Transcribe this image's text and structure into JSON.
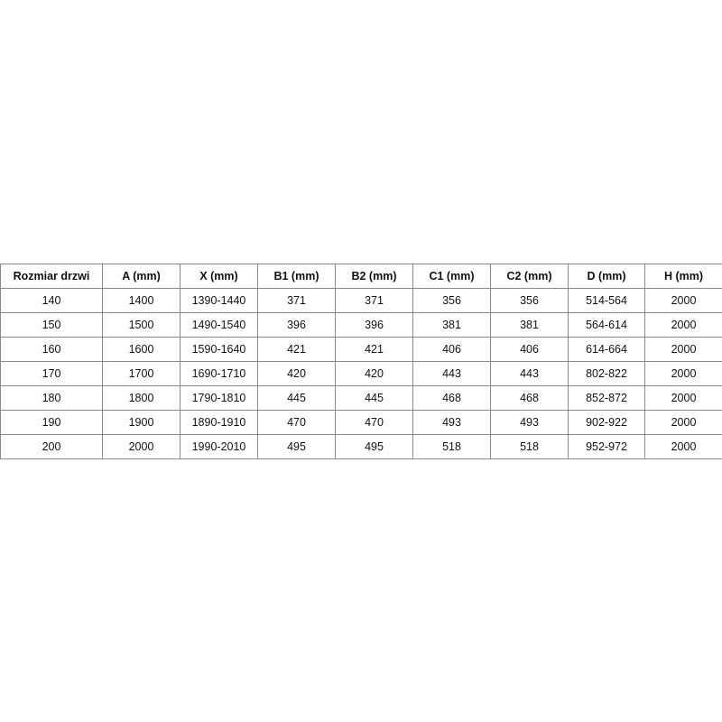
{
  "table": {
    "headers": [
      "Rozmiar drzwi",
      "A (mm)",
      "X (mm)",
      "B1 (mm)",
      "B2 (mm)",
      "C1 (mm)",
      "C2 (mm)",
      "D (mm)",
      "H (mm)"
    ],
    "rows": [
      [
        "140",
        "1400",
        "1390-1440",
        "371",
        "371",
        "356",
        "356",
        "514-564",
        "2000"
      ],
      [
        "150",
        "1500",
        "1490-1540",
        "396",
        "396",
        "381",
        "381",
        "564-614",
        "2000"
      ],
      [
        "160",
        "1600",
        "1590-1640",
        "421",
        "421",
        "406",
        "406",
        "614-664",
        "2000"
      ],
      [
        "170",
        "1700",
        "1690-1710",
        "420",
        "420",
        "443",
        "443",
        "802-822",
        "2000"
      ],
      [
        "180",
        "1800",
        "1790-1810",
        "445",
        "445",
        "468",
        "468",
        "852-872",
        "2000"
      ],
      [
        "190",
        "1900",
        "1890-1910",
        "470",
        "470",
        "493",
        "493",
        "902-922",
        "2000"
      ],
      [
        "200",
        "2000",
        "1990-2010",
        "495",
        "495",
        "518",
        "518",
        "952-972",
        "2000"
      ]
    ]
  }
}
